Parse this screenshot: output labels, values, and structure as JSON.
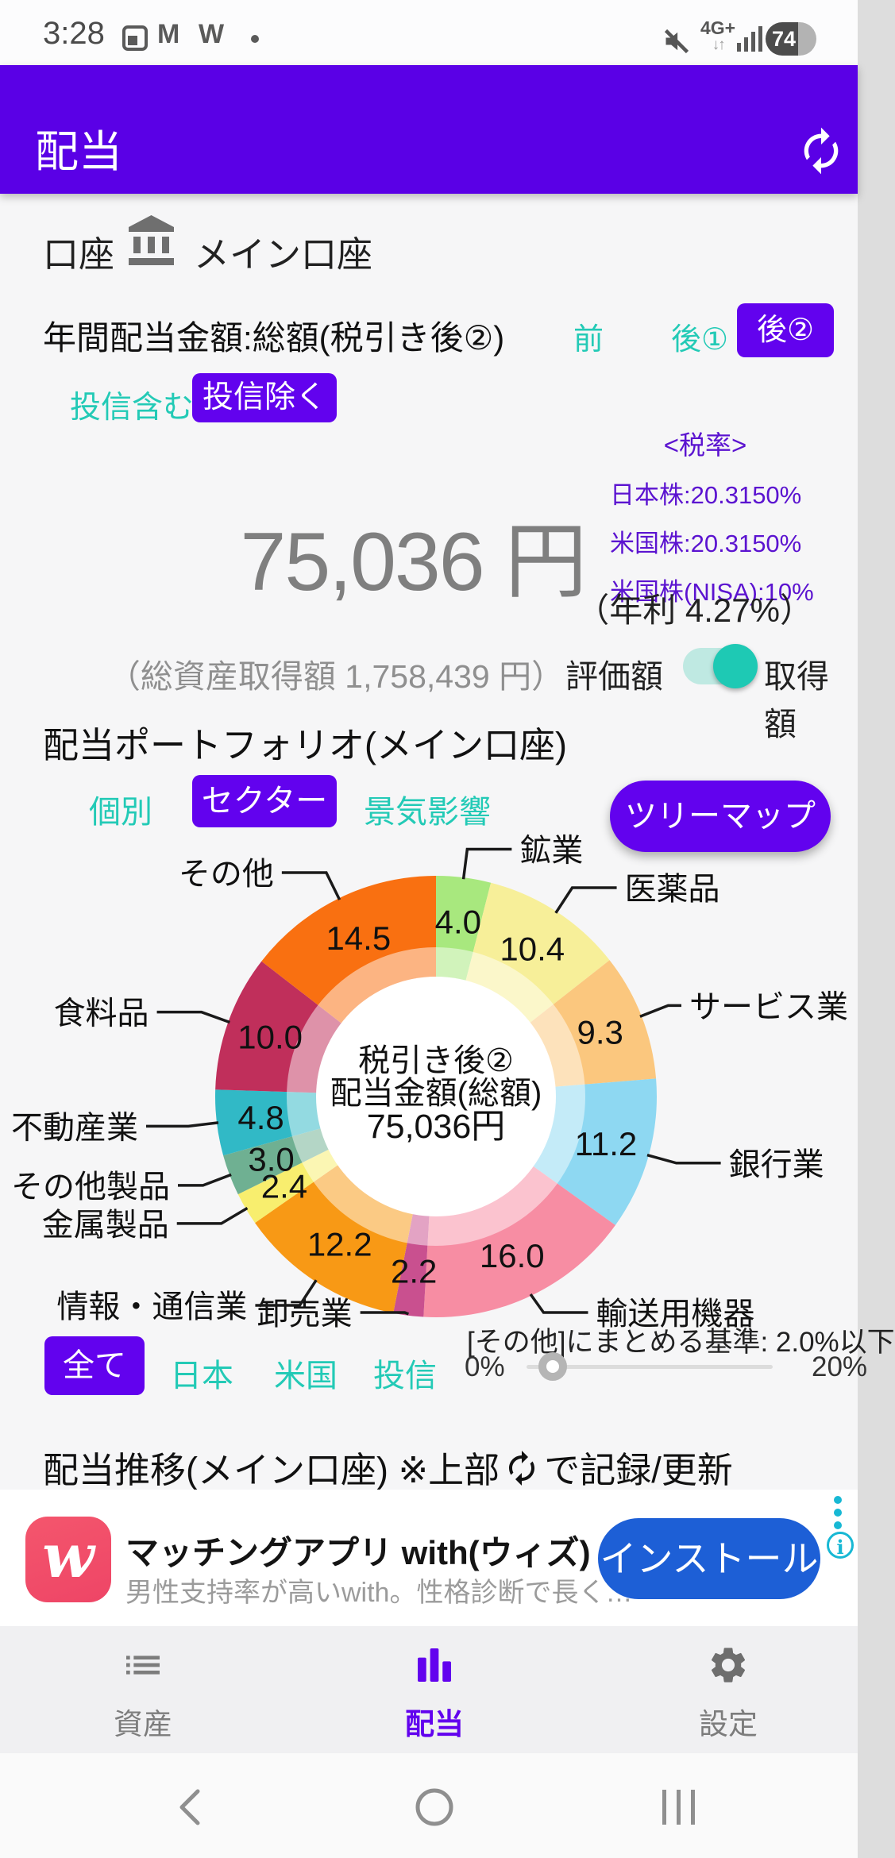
{
  "status_bar": {
    "time": "3:28",
    "notification_letters": [
      "M",
      "W"
    ],
    "network": "4G+",
    "network_arrows": "↓↑",
    "battery_percent": "74"
  },
  "app_bar": {
    "title": "配当"
  },
  "account_row": {
    "label": "口座",
    "value": "メイン口座"
  },
  "annual_section": {
    "title": "年間配当金額:総額(税引き後②)",
    "period_tabs": [
      {
        "label": "前",
        "selected": false
      },
      {
        "label": "後①",
        "selected": false
      },
      {
        "label": "後②",
        "selected": true
      }
    ],
    "fund_tabs": [
      {
        "label": "投信含む",
        "selected": false
      },
      {
        "label": "投信除く",
        "selected": true
      }
    ],
    "amount": "75,036 円",
    "tax_title": "<税率>",
    "tax_rates": [
      "日本株:20.3150%",
      "米国株:20.3150%",
      "米国株(NISA):10%"
    ],
    "annual_yield": "（年利 4.27%）",
    "total_acquisition": "（総資産取得額 1,758,439 円）",
    "value_toggle": {
      "left": "評価額",
      "right": "取得額",
      "state": "right"
    }
  },
  "portfolio_section": {
    "title": "配当ポートフォリオ(メイン口座)",
    "view_tabs": [
      {
        "label": "個別",
        "selected": false
      },
      {
        "label": "セクター",
        "selected": true
      },
      {
        "label": "景気影響",
        "selected": false
      }
    ],
    "treemap_button": "ツリーマップ",
    "market_tabs": [
      {
        "label": "全て",
        "selected": true
      },
      {
        "label": "日本",
        "selected": false
      },
      {
        "label": "米国",
        "selected": false
      },
      {
        "label": "投信",
        "selected": false
      }
    ],
    "grouping_label": "[その他]にまとめる基準: 2.0%以下",
    "slider": {
      "min_label": "0%",
      "max_label": "20%",
      "value": 2,
      "range": [
        0,
        20
      ]
    }
  },
  "chart_data": {
    "type": "pie",
    "title": "配当ポートフォリオ(メイン口座)",
    "unit": "percent",
    "start_angle_deg": 0,
    "direction": "clockwise",
    "center_label": [
      "税引き後②",
      "配当金額(総額)",
      "75,036円"
    ],
    "slices": [
      {
        "label": "鉱業",
        "value": 4.0,
        "color": "#a8e87e"
      },
      {
        "label": "医薬品",
        "value": 10.4,
        "color": "#f7ef99"
      },
      {
        "label": "サービス業",
        "value": 9.3,
        "color": "#fbc77e"
      },
      {
        "label": "銀行業",
        "value": 11.2,
        "color": "#8ed8f2"
      },
      {
        "label": "輸送用機器",
        "value": 16.0,
        "color": "#f78da3"
      },
      {
        "label": "卸売業",
        "value": 2.2,
        "color": "#c9508f"
      },
      {
        "label": "情報・通信業",
        "value": 12.2,
        "color": "#f89915"
      },
      {
        "label": "金属製品",
        "value": 2.4,
        "color": "#f8ee6e"
      },
      {
        "label": "その他製品",
        "value": 3.0,
        "color": "#6fb092"
      },
      {
        "label": "不動産業",
        "value": 4.8,
        "color": "#31b9c6"
      },
      {
        "label": "食料品",
        "value": 10.0,
        "color": "#c02f5b"
      },
      {
        "label": "その他",
        "value": 14.5,
        "color": "#f97011"
      }
    ]
  },
  "trend_section": {
    "title_prefix": "配当推移(メイン口座) ※上部",
    "title_suffix": "で記録/更新"
  },
  "ad": {
    "logo_letter": "w",
    "title": "マッチングアプリ with(ウィズ)",
    "description": "男性支持率が高いwith。性格診断で長く…",
    "install_button": "インストール",
    "info_glyph": "i"
  },
  "bottom_nav": [
    {
      "label": "資産",
      "selected": false
    },
    {
      "label": "配当",
      "selected": true
    },
    {
      "label": "設定",
      "selected": false
    }
  ],
  "colors": {
    "appbar_purple": "#5a00e6",
    "primary_purple": "#6202ee",
    "teal_accent": "#23cab6",
    "toggle_teal": "#1ec9b4",
    "tax_text_purple": "#5b13d0",
    "amount_gray": "#7f7f7f",
    "install_blue": "#1d5fd6",
    "ad_logo_red": "#f4566d",
    "ad_accent_teal": "#17b8d4"
  }
}
